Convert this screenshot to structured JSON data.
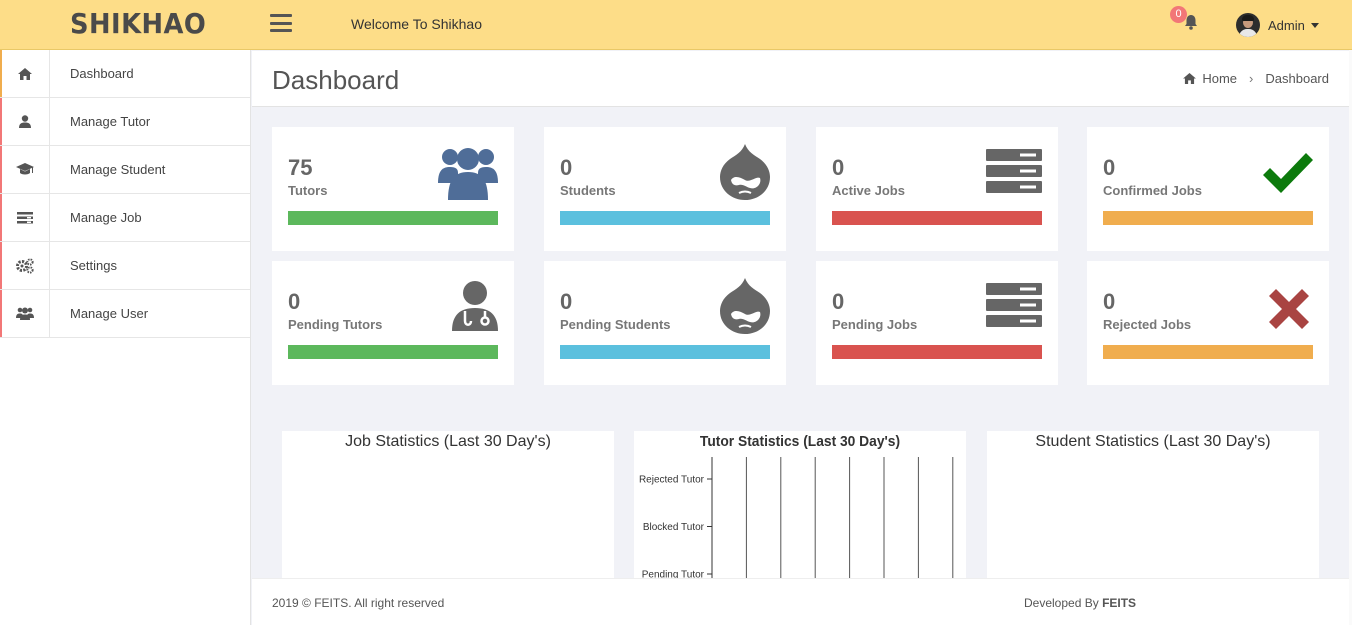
{
  "header": {
    "brand": "SHIKHAO",
    "welcome": "Welcome To Shikhao",
    "notifications_count": "0",
    "user_name": "Admin"
  },
  "sidebar": {
    "items": [
      {
        "label": "Dashboard",
        "icon": "home-icon"
      },
      {
        "label": "Manage Tutor",
        "icon": "user-icon"
      },
      {
        "label": "Manage Student",
        "icon": "graduation-cap-icon"
      },
      {
        "label": "Manage Job",
        "icon": "list-icon"
      },
      {
        "label": "Settings",
        "icon": "gears-icon"
      },
      {
        "label": "Manage User",
        "icon": "users-icon"
      }
    ]
  },
  "page": {
    "title": "Dashboard",
    "breadcrumb": {
      "home": "Home",
      "current": "Dashboard"
    }
  },
  "stats": [
    {
      "value": "75",
      "label": "Tutors",
      "color": "#5cb85c",
      "icon": "users-group-icon"
    },
    {
      "value": "0",
      "label": "Students",
      "color": "#5bc0de",
      "icon": "drupal-icon"
    },
    {
      "value": "0",
      "label": "Active Jobs",
      "color": "#d9534f",
      "icon": "server-icon"
    },
    {
      "value": "0",
      "label": "Confirmed Jobs",
      "color": "#f0ad4e",
      "icon": "check-icon"
    },
    {
      "value": "0",
      "label": "Pending Tutors",
      "color": "#5cb85c",
      "icon": "user-md-icon"
    },
    {
      "value": "0",
      "label": "Pending Students",
      "color": "#5bc0de",
      "icon": "drupal-icon"
    },
    {
      "value": "0",
      "label": "Pending Jobs",
      "color": "#d9534f",
      "icon": "server-icon"
    },
    {
      "value": "0",
      "label": "Rejected Jobs",
      "color": "#f0ad4e",
      "icon": "times-icon"
    }
  ],
  "charts": {
    "job": {
      "title": "Job Statistics (Last 30 Day's)"
    },
    "tutor": {
      "title": "Tutor Statistics (Last 30 Day's)"
    },
    "student": {
      "title": "Student Statistics (Last 30 Day's)"
    }
  },
  "chart_data": {
    "type": "bar",
    "title": "Tutor Statistics (Last 30 Day's)",
    "categories": [
      "Rejected Tutor",
      "Blocked Tutor",
      "Pending Tutor"
    ],
    "values": [
      0,
      0,
      0
    ],
    "orientation": "horizontal",
    "grid": true
  },
  "footer": {
    "copyright": "2019 © FEITS. All right reserved",
    "developed_by": "Developed By",
    "developer": "FEITS"
  }
}
